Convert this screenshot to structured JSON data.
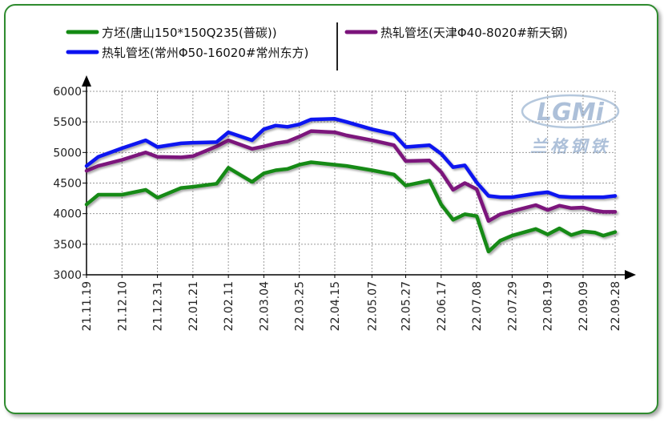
{
  "chart_data": {
    "type": "line",
    "x": [
      "21.11.19",
      "21.12.10",
      "21.12.31",
      "22.01.21",
      "22.02.11",
      "22.03.04",
      "22.03.25",
      "22.04.15",
      "22.05.07",
      "22.05.27",
      "22.06.17",
      "22.07.08",
      "22.07.29",
      "22.08.19",
      "22.09.09",
      "22.09.28"
    ],
    "ylim": [
      3000,
      6000
    ],
    "yticks": [
      3000,
      3500,
      4000,
      4500,
      5000,
      5500,
      6000
    ],
    "grid": true,
    "legend_position": "top",
    "watermark": {
      "logo": "LGMi",
      "subtitle": "兰格钢铁"
    },
    "series": [
      {
        "name": "方坯(唐山150*150Q235(普碳))",
        "color": "#138a13",
        "points": [
          [
            "21.11.19",
            4150
          ],
          [
            "21.11.26",
            4310
          ],
          [
            "21.12.10",
            4310
          ],
          [
            "21.12.24",
            4390
          ],
          [
            "21.12.31",
            4260
          ],
          [
            "22.01.14",
            4420
          ],
          [
            "22.01.21",
            4440
          ],
          [
            "22.02.04",
            4490
          ],
          [
            "22.02.11",
            4750
          ],
          [
            "22.02.25",
            4520
          ],
          [
            "22.03.04",
            4660
          ],
          [
            "22.03.11",
            4710
          ],
          [
            "22.03.18",
            4730
          ],
          [
            "22.03.25",
            4800
          ],
          [
            "22.04.01",
            4840
          ],
          [
            "22.04.15",
            4800
          ],
          [
            "22.04.22",
            4780
          ],
          [
            "22.05.07",
            4710
          ],
          [
            "22.05.20",
            4640
          ],
          [
            "22.05.27",
            4460
          ],
          [
            "22.06.10",
            4540
          ],
          [
            "22.06.17",
            4150
          ],
          [
            "22.06.24",
            3900
          ],
          [
            "22.07.01",
            3990
          ],
          [
            "22.07.08",
            3960
          ],
          [
            "22.07.15",
            3380
          ],
          [
            "22.07.22",
            3560
          ],
          [
            "22.07.29",
            3640
          ],
          [
            "22.08.12",
            3750
          ],
          [
            "22.08.19",
            3660
          ],
          [
            "22.08.26",
            3760
          ],
          [
            "22.09.02",
            3650
          ],
          [
            "22.09.09",
            3710
          ],
          [
            "22.09.16",
            3690
          ],
          [
            "22.09.21",
            3640
          ],
          [
            "22.09.28",
            3700
          ]
        ]
      },
      {
        "name": "热轧管坯(天津Φ40-8020#新天钢)",
        "color": "#7b137b",
        "points": [
          [
            "21.11.19",
            4700
          ],
          [
            "21.11.26",
            4780
          ],
          [
            "21.12.10",
            4880
          ],
          [
            "21.12.24",
            5000
          ],
          [
            "21.12.31",
            4930
          ],
          [
            "22.01.14",
            4920
          ],
          [
            "22.01.21",
            4940
          ],
          [
            "22.02.04",
            5100
          ],
          [
            "22.02.11",
            5200
          ],
          [
            "22.02.25",
            5060
          ],
          [
            "22.03.04",
            5100
          ],
          [
            "22.03.11",
            5150
          ],
          [
            "22.03.18",
            5180
          ],
          [
            "22.03.25",
            5260
          ],
          [
            "22.04.01",
            5350
          ],
          [
            "22.04.15",
            5330
          ],
          [
            "22.04.22",
            5280
          ],
          [
            "22.05.07",
            5200
          ],
          [
            "22.05.20",
            5120
          ],
          [
            "22.05.27",
            4860
          ],
          [
            "22.06.10",
            4870
          ],
          [
            "22.06.17",
            4680
          ],
          [
            "22.06.24",
            4390
          ],
          [
            "22.07.01",
            4500
          ],
          [
            "22.07.08",
            4400
          ],
          [
            "22.07.15",
            3880
          ],
          [
            "22.07.22",
            3990
          ],
          [
            "22.07.29",
            4040
          ],
          [
            "22.08.12",
            4140
          ],
          [
            "22.08.19",
            4060
          ],
          [
            "22.08.26",
            4130
          ],
          [
            "22.09.02",
            4090
          ],
          [
            "22.09.09",
            4100
          ],
          [
            "22.09.16",
            4050
          ],
          [
            "22.09.21",
            4030
          ],
          [
            "22.09.28",
            4030
          ]
        ]
      },
      {
        "name": "热轧管坯(常州Φ50-16020#常州东方)",
        "color": "#0b12f0",
        "points": [
          [
            "21.11.19",
            4780
          ],
          [
            "21.11.26",
            4930
          ],
          [
            "21.12.10",
            5070
          ],
          [
            "21.12.24",
            5200
          ],
          [
            "21.12.31",
            5090
          ],
          [
            "22.01.14",
            5150
          ],
          [
            "22.01.21",
            5160
          ],
          [
            "22.02.04",
            5170
          ],
          [
            "22.02.11",
            5330
          ],
          [
            "22.02.25",
            5200
          ],
          [
            "22.03.04",
            5380
          ],
          [
            "22.03.11",
            5440
          ],
          [
            "22.03.18",
            5420
          ],
          [
            "22.03.25",
            5460
          ],
          [
            "22.04.01",
            5540
          ],
          [
            "22.04.15",
            5550
          ],
          [
            "22.04.22",
            5500
          ],
          [
            "22.05.07",
            5380
          ],
          [
            "22.05.20",
            5300
          ],
          [
            "22.05.27",
            5090
          ],
          [
            "22.06.10",
            5120
          ],
          [
            "22.06.17",
            4980
          ],
          [
            "22.06.24",
            4760
          ],
          [
            "22.07.01",
            4790
          ],
          [
            "22.07.08",
            4510
          ],
          [
            "22.07.15",
            4290
          ],
          [
            "22.07.22",
            4270
          ],
          [
            "22.07.29",
            4270
          ],
          [
            "22.08.12",
            4330
          ],
          [
            "22.08.19",
            4350
          ],
          [
            "22.08.26",
            4280
          ],
          [
            "22.09.02",
            4270
          ],
          [
            "22.09.09",
            4270
          ],
          [
            "22.09.16",
            4270
          ],
          [
            "22.09.21",
            4270
          ],
          [
            "22.09.28",
            4290
          ]
        ]
      }
    ]
  }
}
